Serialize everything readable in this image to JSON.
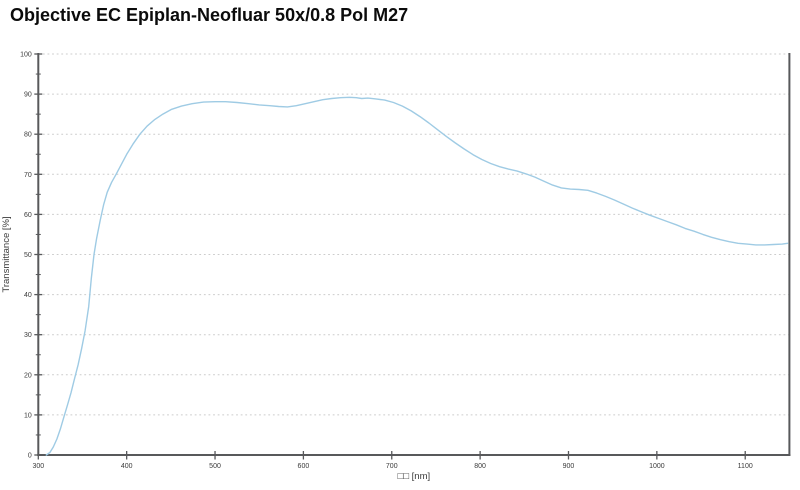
{
  "chart_data": {
    "type": "line",
    "title": "Objective EC Epiplan-Neofluar 50x/0.8 Pol M27",
    "xlabel": "□□ [nm]",
    "ylabel": "Transmittance [%]",
    "xlim": [
      300,
      1150
    ],
    "ylim": [
      0,
      100
    ],
    "xticks": [
      300,
      400,
      500,
      600,
      700,
      800,
      900,
      1000,
      1100
    ],
    "yticks": [
      0,
      10,
      20,
      30,
      40,
      50,
      60,
      70,
      80,
      90,
      100
    ],
    "y_minor_tick_step": 5,
    "grid": "horizontal-dashed",
    "legend_position": "none",
    "axis_color": "#58595b",
    "grid_color": "#cccccc",
    "tick_label_color": "#3a3a3a",
    "series": [
      {
        "name": "transmittance",
        "color": "#9fcbe4",
        "points": [
          [
            309,
            0
          ],
          [
            313,
            0.6
          ],
          [
            317,
            2
          ],
          [
            321,
            4
          ],
          [
            325,
            6.5
          ],
          [
            329,
            9.5
          ],
          [
            333,
            12.5
          ],
          [
            337,
            15.5
          ],
          [
            341,
            19
          ],
          [
            345,
            22.5
          ],
          [
            349,
            26.5
          ],
          [
            353,
            31
          ],
          [
            357,
            37
          ],
          [
            360,
            44
          ],
          [
            363,
            50
          ],
          [
            366,
            54
          ],
          [
            370,
            58.5
          ],
          [
            374,
            62.5
          ],
          [
            378,
            65.5
          ],
          [
            383,
            68
          ],
          [
            388,
            70
          ],
          [
            394,
            72.5
          ],
          [
            400,
            75
          ],
          [
            407,
            77.5
          ],
          [
            415,
            80
          ],
          [
            423,
            82
          ],
          [
            432,
            83.7
          ],
          [
            441,
            85
          ],
          [
            451,
            86.2
          ],
          [
            462,
            87
          ],
          [
            474,
            87.6
          ],
          [
            487,
            88
          ],
          [
            500,
            88.1
          ],
          [
            512,
            88.1
          ],
          [
            525,
            87.9
          ],
          [
            538,
            87.6
          ],
          [
            550,
            87.3
          ],
          [
            562,
            87.1
          ],
          [
            572,
            86.9
          ],
          [
            582,
            86.8
          ],
          [
            592,
            87.1
          ],
          [
            602,
            87.6
          ],
          [
            612,
            88.1
          ],
          [
            622,
            88.6
          ],
          [
            632,
            88.9
          ],
          [
            642,
            89.1
          ],
          [
            652,
            89.2
          ],
          [
            660,
            89.1
          ],
          [
            666,
            88.9
          ],
          [
            673,
            89.0
          ],
          [
            682,
            88.8
          ],
          [
            692,
            88.5
          ],
          [
            702,
            87.9
          ],
          [
            712,
            87.0
          ],
          [
            722,
            85.8
          ],
          [
            732,
            84.4
          ],
          [
            742,
            82.8
          ],
          [
            752,
            81.1
          ],
          [
            762,
            79.4
          ],
          [
            772,
            77.8
          ],
          [
            782,
            76.3
          ],
          [
            792,
            74.9
          ],
          [
            802,
            73.7
          ],
          [
            812,
            72.7
          ],
          [
            822,
            71.9
          ],
          [
            832,
            71.3
          ],
          [
            842,
            70.8
          ],
          [
            852,
            70.1
          ],
          [
            862,
            69.3
          ],
          [
            872,
            68.3
          ],
          [
            882,
            67.3
          ],
          [
            892,
            66.6
          ],
          [
            902,
            66.3
          ],
          [
            912,
            66.2
          ],
          [
            922,
            66.0
          ],
          [
            932,
            65.3
          ],
          [
            942,
            64.5
          ],
          [
            952,
            63.6
          ],
          [
            962,
            62.6
          ],
          [
            972,
            61.6
          ],
          [
            982,
            60.7
          ],
          [
            992,
            59.8
          ],
          [
            1002,
            59.0
          ],
          [
            1012,
            58.2
          ],
          [
            1022,
            57.4
          ],
          [
            1032,
            56.5
          ],
          [
            1042,
            55.8
          ],
          [
            1052,
            55.0
          ],
          [
            1062,
            54.3
          ],
          [
            1072,
            53.7
          ],
          [
            1082,
            53.2
          ],
          [
            1092,
            52.8
          ],
          [
            1102,
            52.6
          ],
          [
            1112,
            52.4
          ],
          [
            1122,
            52.4
          ],
          [
            1132,
            52.5
          ],
          [
            1142,
            52.6
          ],
          [
            1148,
            52.8
          ]
        ]
      }
    ]
  }
}
